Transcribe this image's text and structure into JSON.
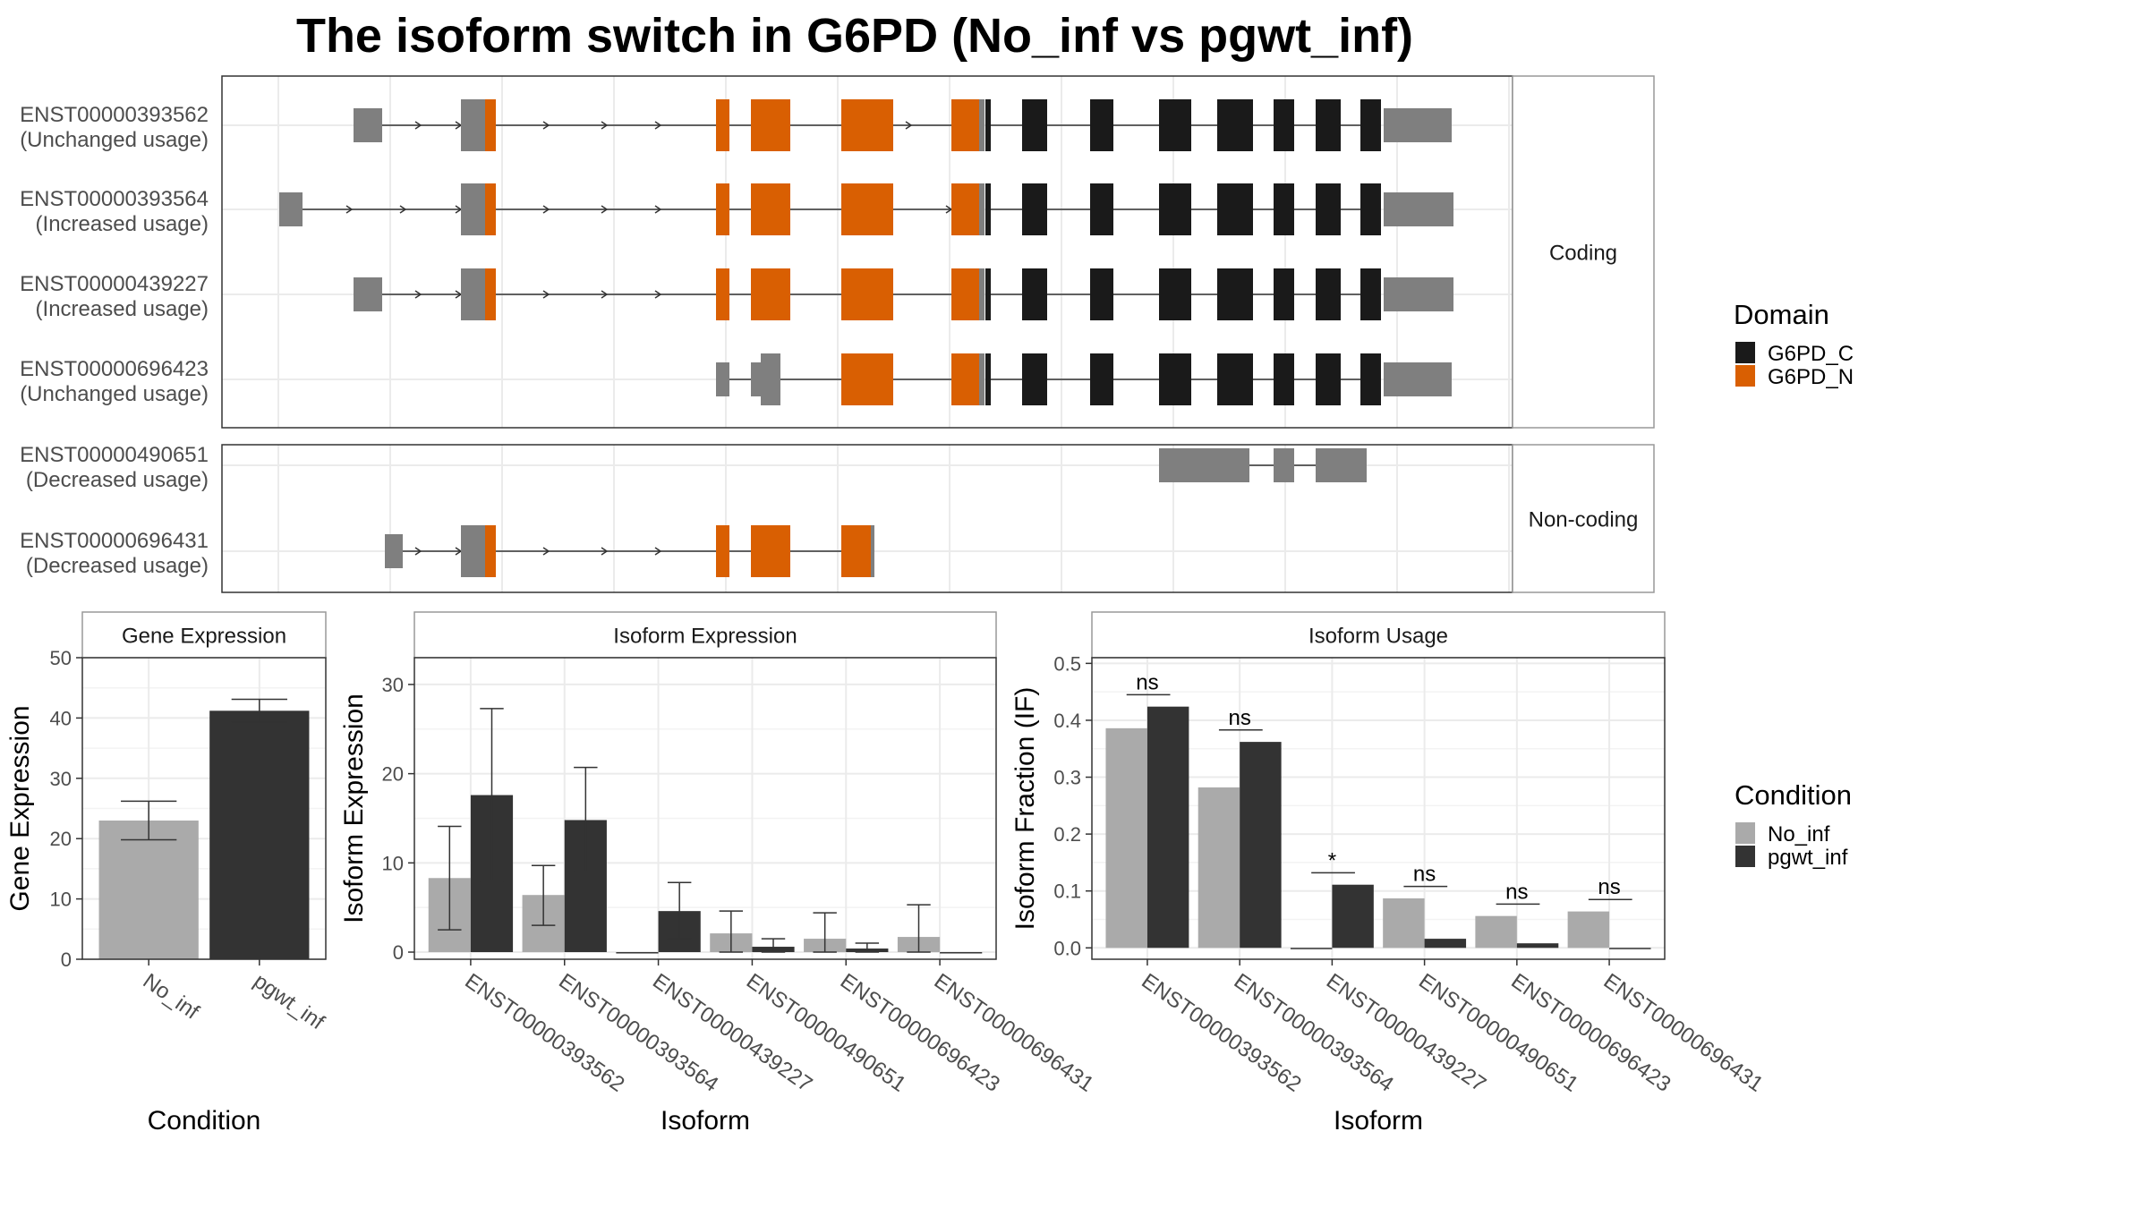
{
  "title": "The isoform switch in G6PD (No_inf vs pgwt_inf)",
  "colors": {
    "domain_c": "#1a1a1a",
    "domain_n": "#d95f02",
    "utr": "#7f7f7f",
    "no_inf": "#aaaaaa",
    "pgwt_inf": "#333333"
  },
  "structure": {
    "facets": [
      "Coding",
      "Non-coding"
    ],
    "domain_legend": {
      "title": "Domain",
      "items": [
        {
          "label": "G6PD_C",
          "color": "#1a1a1a"
        },
        {
          "label": "G6PD_N",
          "color": "#d95f02"
        }
      ]
    },
    "transcripts": [
      {
        "id": "ENST00000393562",
        "usage": "(Unchanged usage)",
        "facet": 0
      },
      {
        "id": "ENST00000393564",
        "usage": "(Increased usage)",
        "facet": 0
      },
      {
        "id": "ENST00000439227",
        "usage": "(Increased usage)",
        "facet": 0
      },
      {
        "id": "ENST00000696423",
        "usage": "(Unchanged usage)",
        "facet": 0
      },
      {
        "id": "ENST00000490651",
        "usage": "(Decreased usage)",
        "facet": 1
      },
      {
        "id": "ENST00000696431",
        "usage": "(Decreased usage)",
        "facet": 1
      }
    ]
  },
  "chart_data": [
    {
      "type": "bar",
      "title": "Gene Expression",
      "xlabel": "Condition",
      "ylabel": "Gene Expression",
      "categories": [
        "No_inf",
        "pgwt_inf"
      ],
      "values": [
        23.0,
        41.2
      ],
      "err_low": [
        19.8,
        39.3
      ],
      "err_high": [
        26.2,
        43.1
      ],
      "ylim": [
        0,
        50
      ],
      "yticks": [
        0,
        10,
        20,
        30,
        40,
        50
      ]
    },
    {
      "type": "bar",
      "title": "Isoform Expression",
      "xlabel": "Isoform",
      "ylabel": "Isoform Expression",
      "categories": [
        "ENST00000393562",
        "ENST00000393564",
        "ENST00000439227",
        "ENST00000490651",
        "ENST00000696423",
        "ENST00000696431"
      ],
      "series": [
        {
          "name": "No_inf",
          "values": [
            8.3,
            6.4,
            0.0,
            2.1,
            1.5,
            1.7
          ],
          "err_low": [
            2.5,
            3.0,
            0.0,
            0.0,
            0.0,
            0.0
          ],
          "err_high": [
            14.1,
            9.7,
            0.0,
            4.6,
            4.4,
            5.3
          ]
        },
        {
          "name": "pgwt_inf",
          "values": [
            17.6,
            14.8,
            4.6,
            0.6,
            0.4,
            0.0
          ],
          "err_low": [
            7.9,
            9.0,
            1.5,
            0.0,
            0.0,
            0.0
          ],
          "err_high": [
            27.3,
            20.7,
            7.8,
            1.5,
            1.0,
            0.0
          ]
        }
      ],
      "ylim": [
        -0.8,
        33
      ],
      "yticks": [
        0,
        10,
        20,
        30
      ]
    },
    {
      "type": "bar",
      "title": "Isoform Usage",
      "xlabel": "Isoform",
      "ylabel": "Isoform Fraction (IF)",
      "categories": [
        "ENST00000393562",
        "ENST00000393564",
        "ENST00000439227",
        "ENST00000490651",
        "ENST00000696423",
        "ENST00000696431"
      ],
      "series": [
        {
          "name": "No_inf",
          "values": [
            0.386,
            0.282,
            0.0,
            0.087,
            0.056,
            0.064
          ]
        },
        {
          "name": "pgwt_inf",
          "values": [
            0.424,
            0.362,
            0.111,
            0.016,
            0.008,
            0.0
          ]
        }
      ],
      "significance": [
        "ns",
        "ns",
        "*",
        "ns",
        "ns",
        "ns"
      ],
      "sig_y": [
        0.445,
        0.383,
        0.132,
        0.108,
        0.077,
        0.085
      ],
      "ylim": [
        -0.02,
        0.51
      ],
      "yticks": [
        0.0,
        0.1,
        0.2,
        0.3,
        0.4,
        0.5
      ],
      "ytick_labels": [
        "0.0",
        "0.1",
        "0.2",
        "0.3",
        "0.4",
        "0.5"
      ]
    }
  ],
  "condition_legend": {
    "title": "Condition",
    "items": [
      {
        "label": "No_inf",
        "color": "#aaaaaa"
      },
      {
        "label": "pgwt_inf",
        "color": "#333333"
      }
    ]
  }
}
